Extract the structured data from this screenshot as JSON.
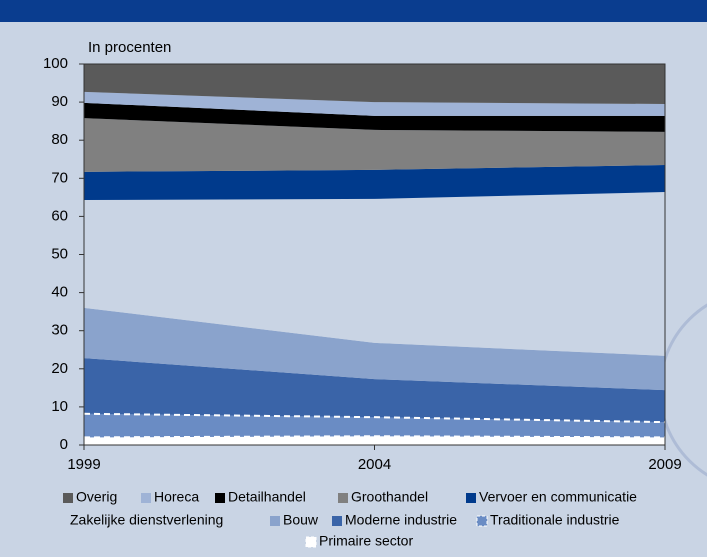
{
  "chart_data": {
    "type": "stacked_area",
    "y_label": "In procenten",
    "x": [
      1999,
      2004,
      2009
    ],
    "xlim": [
      1999,
      2009
    ],
    "xticks": [
      1999,
      2004,
      2009
    ],
    "ylim": [
      0,
      100
    ],
    "yticks": [
      0,
      10,
      20,
      30,
      40,
      50,
      60,
      70,
      80,
      90,
      100
    ],
    "series": [
      {
        "name": "Primaire sector",
        "color": "#ffffff",
        "line_style": "dashed",
        "values": [
          2,
          2.3,
          2
        ]
      },
      {
        "name": "Traditionale industrie",
        "color": "#6a8cc4",
        "line_style": "dashed",
        "values": [
          6.2,
          5,
          4
        ]
      },
      {
        "name": "Moderne industrie",
        "color": "#3a64a8",
        "values": [
          14.6,
          10,
          8.4
        ]
      },
      {
        "name": "Bouw",
        "color": "#8aa3cc",
        "values": [
          13.2,
          9.5,
          9
        ]
      },
      {
        "name": "Zakelijke dienstverlening",
        "color": "#c9d4e4",
        "values": [
          28.3,
          37.8,
          43
        ]
      },
      {
        "name": "Vervoer en communicatie",
        "color": "#003a8c",
        "values": [
          7.4,
          7.6,
          7.1
        ]
      },
      {
        "name": "Groothandel",
        "color": "#808080",
        "values": [
          14.1,
          10.5,
          8.7
        ]
      },
      {
        "name": "Detailhandel",
        "color": "#000000",
        "values": [
          4,
          3.7,
          4.2
        ]
      },
      {
        "name": "Horeca",
        "color": "#9fb3d6",
        "values": [
          2.9,
          3.6,
          3.1
        ]
      },
      {
        "name": "Overig",
        "color": "#5a5a5a",
        "values": [
          7.3,
          10,
          10.5
        ]
      }
    ]
  }
}
